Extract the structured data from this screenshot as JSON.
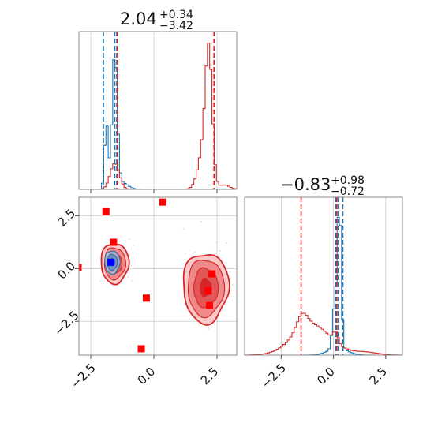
{
  "colors": {
    "blue": "#1f77b4",
    "red": "#d62728",
    "red_light": "#f08a8a",
    "red_pale": "#fbc9c9",
    "grid": "#cccccc",
    "frame": "#888888"
  },
  "titles": {
    "p0": {
      "main": "2.04",
      "sup": "+0.34",
      "sub": "−3.42"
    },
    "p1": {
      "main": "−0.83",
      "sup": "+0.98",
      "sub": "−0.72"
    }
  },
  "chart_data": {
    "type": "scatter",
    "layout": "corner plot",
    "x_ticks": [
      {
        "value": -2.5,
        "label": "−2.5"
      },
      {
        "value": 0.0,
        "label": "0.0"
      },
      {
        "value": 2.5,
        "label": "2.5"
      }
    ],
    "y_ticks": [
      {
        "value": -2.5,
        "label": "−2.5"
      },
      {
        "value": 0.0,
        "label": "0.0"
      },
      {
        "value": 2.5,
        "label": "2.5"
      }
    ],
    "xlim_p0": [
      -2.97,
      3.28
    ],
    "ylim_p1": [
      -4.1,
      3.38
    ],
    "xlim_p1": [
      -4.25,
      3.3
    ],
    "grid": true,
    "hist_p0": {
      "blue_quantile_lines": [
        -2.0,
        -1.55,
        -1.47
      ],
      "red_quantile_lines": [
        -1.45,
        2.38
      ]
    },
    "hist_p1": {
      "blue_quantile_lines": [
        0.1,
        0.22,
        0.45
      ],
      "red_quantile_lines": [
        -1.55,
        0.15
      ]
    },
    "red_markers": [
      {
        "x": -3.0,
        "y": 0.05
      },
      {
        "x": -1.9,
        "y": 2.7
      },
      {
        "x": 0.35,
        "y": 3.15
      },
      {
        "x": -1.6,
        "y": 1.25
      },
      {
        "x": -0.3,
        "y": -1.4
      },
      {
        "x": -0.5,
        "y": -3.8
      },
      {
        "x": 2.15,
        "y": -1.05
      },
      {
        "x": 2.2,
        "y": -1.75
      },
      {
        "x": 2.3,
        "y": -0.25
      }
    ],
    "blue_marker": {
      "x": -1.7,
      "y": 0.3
    }
  }
}
